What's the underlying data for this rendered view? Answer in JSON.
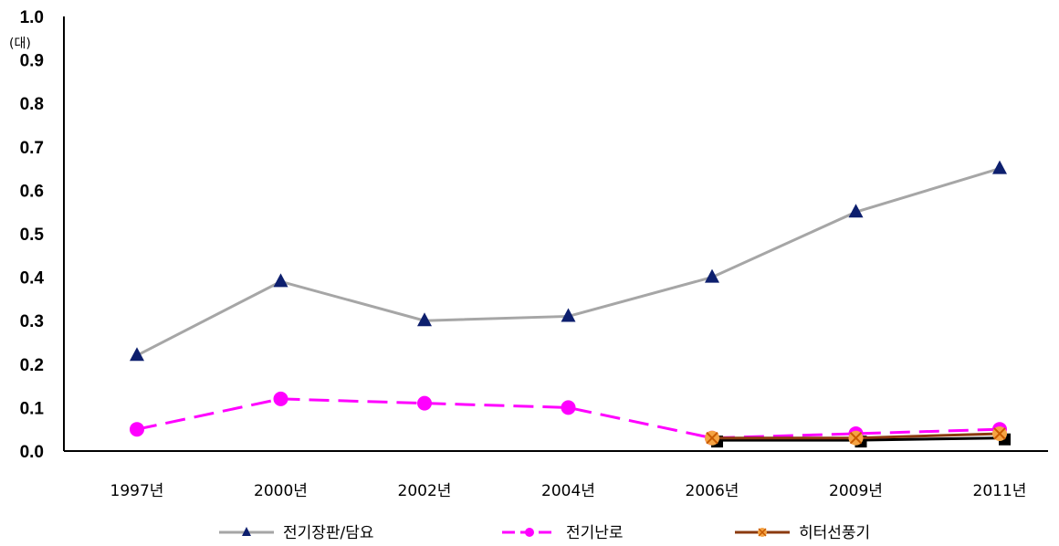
{
  "chart_data": {
    "type": "line",
    "unit_label": "(대)",
    "categories": [
      "1997년",
      "2000년",
      "2002년",
      "2004년",
      "2006년",
      "2009년",
      "2011년"
    ],
    "ylim": [
      0,
      1.0
    ],
    "yticks": [
      "0.0",
      "0.1",
      "0.2",
      "0.3",
      "0.4",
      "0.5",
      "0.6",
      "0.7",
      "0.8",
      "0.9",
      "1.0"
    ],
    "grid": false,
    "legend_position": "bottom",
    "series": [
      {
        "name": "전기장판/담요",
        "values": [
          0.22,
          0.39,
          0.3,
          0.31,
          0.4,
          0.55,
          0.65
        ],
        "line_color": "#a6a6a6",
        "marker_color": "#0d1f6e",
        "marker": "triangle",
        "dash": "solid"
      },
      {
        "name": "전기난로",
        "values": [
          0.05,
          0.12,
          0.11,
          0.1,
          0.03,
          0.04,
          0.05
        ],
        "line_color": "#ff00ff",
        "marker_color": "#ff00ff",
        "marker": "circle",
        "dash": "dashed"
      },
      {
        "name": "",
        "values": [
          null,
          null,
          null,
          null,
          0.025,
          0.025,
          0.03
        ],
        "line_color": "#000000",
        "marker_color": "#000000",
        "marker": "square",
        "dash": "solid"
      },
      {
        "name": "히터선풍기",
        "values": [
          null,
          null,
          null,
          null,
          0.03,
          0.03,
          0.04
        ],
        "line_color": "#8b3a0f",
        "marker_color": "#f5a343",
        "marker": "x-circle",
        "dash": "solid"
      }
    ]
  }
}
